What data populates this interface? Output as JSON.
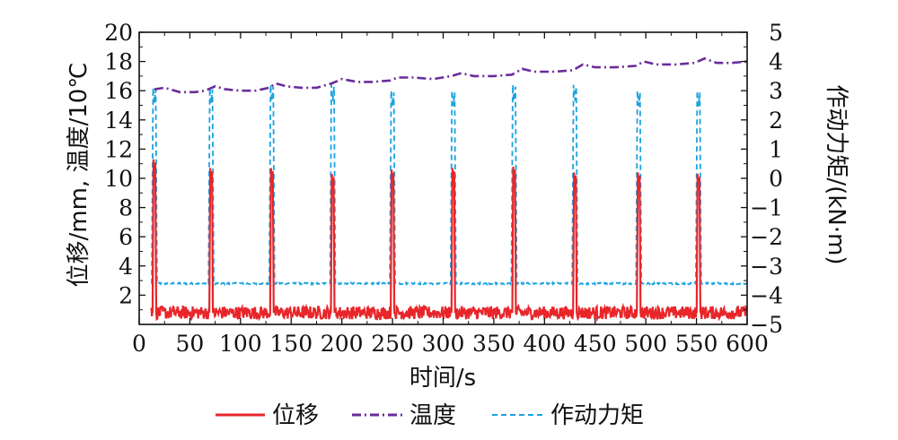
{
  "chart_data": {
    "type": "line",
    "xlabel": "时间/s",
    "ylabel_left": "位移/mm, 温度/10℃",
    "ylabel_right": "作动力矩/(kN·m)",
    "xlim": [
      0,
      600
    ],
    "ylim_left": [
      0,
      20
    ],
    "ylim_right": [
      -5,
      5
    ],
    "x_ticks": [
      "0",
      "50",
      "100",
      "150",
      "200",
      "250",
      "300",
      "350",
      "400",
      "450",
      "500",
      "550",
      "600"
    ],
    "y_left_ticks": [
      "2",
      "4",
      "6",
      "8",
      "10",
      "12",
      "14",
      "16",
      "18",
      "20"
    ],
    "y_right_ticks": [
      "−5",
      "−4",
      "−3",
      "−2",
      "−1",
      "0",
      "1",
      "2",
      "3",
      "4",
      "5"
    ],
    "legend_position": "bottom",
    "series": [
      {
        "name": "位移",
        "axis": "left",
        "color": "#e8262a",
        "style": "solid",
        "baseline": 0.8,
        "peak_times": [
          15,
          71,
          131,
          191,
          250,
          310,
          370,
          430,
          493,
          552
        ],
        "peak_values": [
          11.3,
          10.7,
          10.7,
          10.3,
          10.6,
          10.7,
          10.8,
          10.4,
          10.4,
          10.3
        ]
      },
      {
        "name": "温度",
        "axis": "left",
        "color": "#6a2c9c",
        "style": "dashdot",
        "x": [
          15,
          25,
          40,
          55,
          65,
          75,
          85,
          100,
          115,
          128,
          135,
          145,
          160,
          175,
          190,
          200,
          215,
          230,
          248,
          255,
          270,
          290,
          308,
          318,
          330,
          350,
          368,
          378,
          390,
          410,
          428,
          438,
          450,
          470,
          490,
          498,
          510,
          530,
          548,
          558,
          570,
          585,
          600
        ],
        "values": [
          16.1,
          16.2,
          15.9,
          15.9,
          16.0,
          16.3,
          16.1,
          16.0,
          16.0,
          16.2,
          16.5,
          16.3,
          16.2,
          16.2,
          16.5,
          16.8,
          16.6,
          16.6,
          16.7,
          16.9,
          16.9,
          16.8,
          17.0,
          17.2,
          17.0,
          17.0,
          17.1,
          17.5,
          17.3,
          17.3,
          17.4,
          17.8,
          17.6,
          17.6,
          17.7,
          18.0,
          17.8,
          17.8,
          17.9,
          18.2,
          17.9,
          17.9,
          18.0
        ]
      },
      {
        "name": "作动力矩",
        "axis": "right",
        "color": "#1aa3e0",
        "style": "dashed",
        "baseline": -3.6,
        "peak_times": [
          15,
          71,
          131,
          191,
          250,
          310,
          370,
          430,
          493,
          552
        ],
        "peak_values": [
          3.1,
          3.1,
          3.2,
          3.2,
          3.0,
          3.0,
          3.2,
          3.2,
          3.0,
          3.0
        ]
      }
    ]
  }
}
